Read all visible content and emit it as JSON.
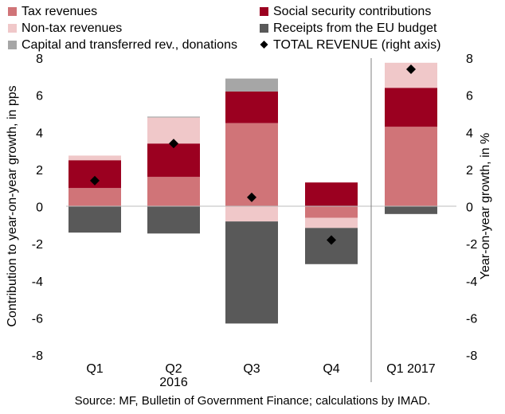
{
  "chart_data": {
    "type": "bar",
    "stacked": true,
    "categories": [
      "Q1",
      "Q2",
      "Q3",
      "Q4",
      "Q1 2017"
    ],
    "group_label": "2016",
    "series": [
      {
        "name": "Tax revenues",
        "color": "#d07478",
        "values": [
          1.0,
          1.6,
          4.5,
          -0.6,
          4.3
        ]
      },
      {
        "name": "Social security contributions",
        "color": "#9b0020",
        "values": [
          1.5,
          1.8,
          1.7,
          1.3,
          2.1
        ]
      },
      {
        "name": "Non-tax revenues",
        "color": "#f0c8c9",
        "values": [
          0.25,
          1.4,
          -0.8,
          -0.55,
          1.35
        ]
      },
      {
        "name": "Receipts from the EU budget",
        "color": "#595959",
        "values": [
          -1.4,
          -1.45,
          -5.5,
          -1.95,
          -0.4
        ]
      },
      {
        "name": "Capital and transferred rev., donations",
        "color": "#a6a6a6",
        "values": [
          0.0,
          0.05,
          0.7,
          0.0,
          0.0
        ]
      }
    ],
    "line_series": {
      "name": "TOTAL REVENUE (right axis)",
      "marker": "diamond",
      "color": "#000000",
      "values": [
        1.4,
        3.4,
        0.5,
        -1.8,
        7.4
      ]
    },
    "ylabel": "Contribution to year-on-year growth, in pps",
    "y2label": "Year-on-year growth, in %",
    "ylim": [
      -8,
      8
    ],
    "y2lim": [
      -8,
      8
    ],
    "yticks": [
      -8,
      -6,
      -4,
      -2,
      0,
      2,
      4,
      6,
      8
    ],
    "grid": false,
    "legend_position": "top"
  },
  "source": "Source: MF, Bulletin of Government Finance; calculations by IMAD."
}
